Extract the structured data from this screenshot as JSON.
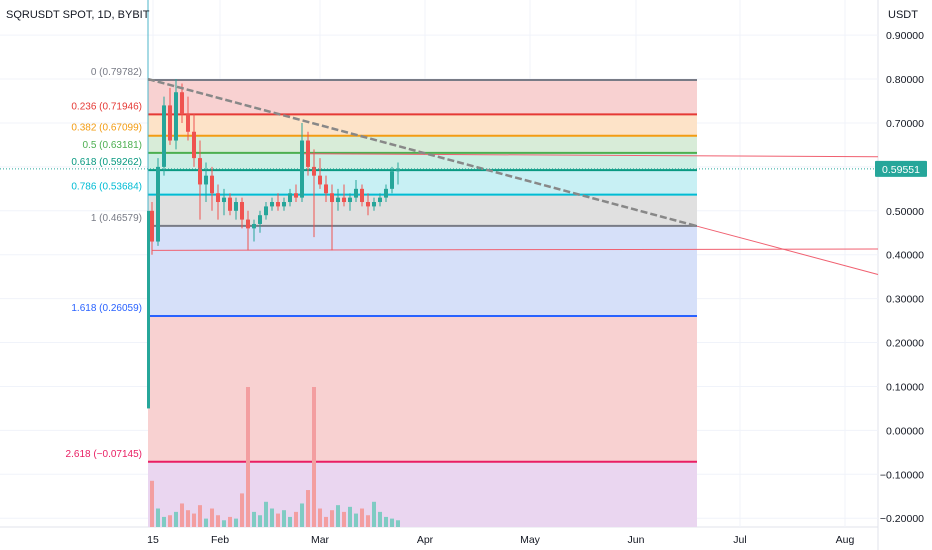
{
  "header": {
    "title": "SQRUSDT SPOT, 1D, BYBIT",
    "currency": "USDT"
  },
  "colors": {
    "up": "#26a69a",
    "down": "#ef5350",
    "trendline": "#888888",
    "trend_ray": "#f06070",
    "cursor_line": "#4cb6c9",
    "last_price_bg": "#26a69a"
  },
  "chart_data": {
    "type": "candlestick",
    "x_axis": {
      "ticks": [
        "15",
        "Feb",
        "Mar",
        "Apr",
        "May",
        "Jun",
        "Jul",
        "Aug"
      ]
    },
    "y_axis": {
      "ylim": [
        -0.22,
        0.98
      ],
      "ticks": [
        "0.90000",
        "0.80000",
        "0.70000",
        "0.60000",
        "0.50000",
        "0.40000",
        "0.30000",
        "0.20000",
        "0.10000",
        "0.00000",
        "−0.10000",
        "−0.20000"
      ],
      "tick_values": [
        0.9,
        0.8,
        0.7,
        0.6,
        0.5,
        0.4,
        0.3,
        0.2,
        0.1,
        0.0,
        -0.1,
        -0.2
      ]
    },
    "last_price": {
      "label": "0.59551",
      "value": 0.59551
    },
    "fib_levels": [
      {
        "ratio": 0,
        "price": 0.79782,
        "label": "0 (0.79782)",
        "color": "#787b86",
        "fill": "#f8d1d1"
      },
      {
        "ratio": 0.236,
        "price": 0.71946,
        "label": "0.236 (0.71946)",
        "color": "#e53935",
        "fill": "#fde3c8"
      },
      {
        "ratio": 0.382,
        "price": 0.67099,
        "label": "0.382 (0.67099)",
        "color": "#f39c12",
        "fill": "#d8ecd8"
      },
      {
        "ratio": 0.5,
        "price": 0.63181,
        "label": "0.5 (0.63181)",
        "color": "#4caf50",
        "fill": "#cdeee4"
      },
      {
        "ratio": 0.618,
        "price": 0.59262,
        "label": "0.618 (0.59262)",
        "color": "#089981",
        "fill": "#c8f0f4"
      },
      {
        "ratio": 0.786,
        "price": 0.53684,
        "label": "0.786 (0.53684)",
        "color": "#00bcd4",
        "fill": "#e0e0e0"
      },
      {
        "ratio": 1,
        "price": 0.46579,
        "label": "1 (0.46579)",
        "color": "#787b86",
        "fill": "#d6e0f9"
      },
      {
        "ratio": 1.618,
        "price": 0.26059,
        "label": "1.618 (0.26059)",
        "color": "#2962ff",
        "fill": "#f8d1d1"
      },
      {
        "ratio": 2.618,
        "price": -0.07145,
        "label": "2.618 (−0.07145)",
        "color": "#e91e63",
        "fill": "#ead6f0"
      }
    ],
    "fib_bottom": -0.22,
    "trendline": {
      "from": [
        0,
        0.8
      ],
      "to": [
        56,
        0.465
      ]
    },
    "trend_ray": {
      "from": [
        56,
        0.465
      ],
      "to": [
        75,
        0.355
      ]
    },
    "support_ray": {
      "from": [
        0,
        0.41
      ],
      "to": [
        75,
        0.413
      ]
    },
    "resistance_ray": {
      "from": [
        25,
        0.63
      ],
      "to": [
        75,
        0.623
      ]
    },
    "candles": [
      [
        0.5,
        0.52,
        0.4,
        0.43
      ],
      [
        0.43,
        0.62,
        0.42,
        0.6
      ],
      [
        0.6,
        0.76,
        0.58,
        0.74
      ],
      [
        0.74,
        0.78,
        0.65,
        0.66
      ],
      [
        0.66,
        0.8,
        0.64,
        0.77
      ],
      [
        0.77,
        0.79,
        0.7,
        0.72
      ],
      [
        0.72,
        0.76,
        0.66,
        0.68
      ],
      [
        0.68,
        0.72,
        0.6,
        0.62
      ],
      [
        0.62,
        0.66,
        0.48,
        0.56
      ],
      [
        0.56,
        0.61,
        0.52,
        0.58
      ],
      [
        0.58,
        0.6,
        0.5,
        0.54
      ],
      [
        0.54,
        0.56,
        0.48,
        0.52
      ],
      [
        0.52,
        0.55,
        0.49,
        0.53
      ],
      [
        0.53,
        0.54,
        0.49,
        0.5
      ],
      [
        0.5,
        0.53,
        0.48,
        0.52
      ],
      [
        0.52,
        0.53,
        0.46,
        0.48
      ],
      [
        0.48,
        0.5,
        0.41,
        0.46
      ],
      [
        0.46,
        0.48,
        0.43,
        0.47
      ],
      [
        0.47,
        0.5,
        0.45,
        0.49
      ],
      [
        0.49,
        0.52,
        0.48,
        0.51
      ],
      [
        0.51,
        0.53,
        0.5,
        0.52
      ],
      [
        0.52,
        0.54,
        0.5,
        0.51
      ],
      [
        0.51,
        0.53,
        0.5,
        0.52
      ],
      [
        0.52,
        0.55,
        0.51,
        0.54
      ],
      [
        0.54,
        0.56,
        0.52,
        0.53
      ],
      [
        0.53,
        0.7,
        0.52,
        0.66
      ],
      [
        0.66,
        0.68,
        0.58,
        0.6
      ],
      [
        0.6,
        0.64,
        0.44,
        0.58
      ],
      [
        0.58,
        0.62,
        0.55,
        0.56
      ],
      [
        0.56,
        0.58,
        0.52,
        0.54
      ],
      [
        0.54,
        0.56,
        0.41,
        0.52
      ],
      [
        0.52,
        0.55,
        0.5,
        0.53
      ],
      [
        0.53,
        0.56,
        0.51,
        0.52
      ],
      [
        0.52,
        0.54,
        0.5,
        0.53
      ],
      [
        0.53,
        0.57,
        0.52,
        0.55
      ],
      [
        0.55,
        0.56,
        0.51,
        0.52
      ],
      [
        0.52,
        0.54,
        0.49,
        0.51
      ],
      [
        0.51,
        0.53,
        0.5,
        0.52
      ],
      [
        0.52,
        0.54,
        0.51,
        0.53
      ],
      [
        0.53,
        0.56,
        0.52,
        0.55
      ],
      [
        0.55,
        0.6,
        0.54,
        0.59
      ],
      [
        0.59,
        0.61,
        0.56,
        0.596
      ]
    ],
    "volume": [
      0.55,
      0.22,
      0.12,
      0.14,
      0.18,
      0.28,
      0.2,
      0.16,
      0.26,
      0.1,
      0.22,
      0.14,
      0.08,
      0.12,
      0.1,
      0.4,
      0.24,
      0.18,
      0.14,
      0.3,
      0.22,
      0.16,
      0.2,
      0.12,
      0.18,
      0.28,
      0.44,
      0.36,
      0.22,
      0.12,
      0.2,
      0.26,
      0.18,
      0.24,
      0.16,
      0.22,
      0.14,
      0.3,
      0.18,
      0.12,
      0.1,
      0.08
    ],
    "volume_spikes": {
      "16": 1.0,
      "27": 1.0
    }
  }
}
